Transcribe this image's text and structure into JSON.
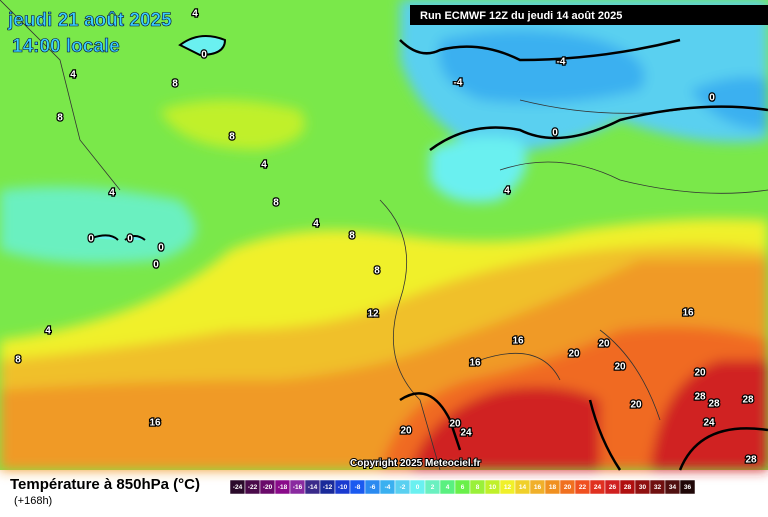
{
  "header": {
    "date": "jeudi 21 août 2025",
    "time": "14:00 locale",
    "run": "Run ECMWF 12Z du jeudi 14 août 2025",
    "copyright": "Copyright 2025 Meteociel.fr"
  },
  "legend": {
    "title": "Température à 850hPa (°C)",
    "lead": "(+168h)",
    "labels": [
      -24,
      -22,
      -20,
      -18,
      -16,
      -14,
      -12,
      -10,
      -8,
      -6,
      -4,
      -2,
      0,
      2,
      4,
      6,
      8,
      10,
      12,
      14,
      16,
      18,
      20,
      22,
      24,
      26,
      28,
      30,
      32,
      34,
      36
    ],
    "colors": [
      "#2a0a2a",
      "#4a0a4a",
      "#6a0a6a",
      "#8a0a8a",
      "#8a2aa0",
      "#3a2a8a",
      "#1a2a9a",
      "#1a3ad0",
      "#1a5af0",
      "#2a8af0",
      "#3ab0f0",
      "#5ad0f0",
      "#6af0f0",
      "#6af0c0",
      "#5af080",
      "#6af04a",
      "#9af03a",
      "#c0f02a",
      "#f0f02a",
      "#f0d02a",
      "#f0b02a",
      "#f09020",
      "#f07020",
      "#f05020",
      "#e03020",
      "#d02020",
      "#b01010",
      "#901010",
      "#701010",
      "#501010",
      "#200808"
    ]
  },
  "contour_labels": [
    4,
    0,
    4,
    8,
    8,
    8,
    4,
    4,
    8,
    4,
    8,
    8,
    12,
    4,
    8,
    16,
    0,
    0,
    0,
    0,
    -4,
    -4,
    0,
    0,
    4,
    16,
    16,
    16,
    20,
    20,
    20,
    20,
    20,
    28,
    28,
    28,
    24,
    28,
    20,
    24,
    20
  ]
}
